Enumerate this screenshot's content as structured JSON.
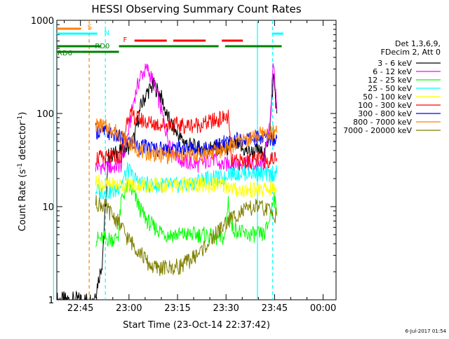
{
  "chart_data": {
    "type": "line",
    "title": "HESSI Observing Summary Count Rates",
    "xlabel": "Start Time (23-Oct-14 22:37:42)",
    "ylabel_main": "Count Rate (s",
    "ylabel_sup": "-1",
    "ylabel_tail": " detector",
    "ylabel_end": ")",
    "y_scale": "log",
    "ylim": [
      1,
      1000
    ],
    "x_unit": "minutes after 22:37:42",
    "xlim": [
      0,
      86.3
    ],
    "x_ticks": [
      {
        "label": "22:45",
        "x": 7.3
      },
      {
        "label": "23:00",
        "x": 22.3
      },
      {
        "label": "23:15",
        "x": 37.3
      },
      {
        "label": "23:30",
        "x": 52.3
      },
      {
        "label": "23:45",
        "x": 67.3
      },
      {
        "label": "00:00",
        "x": 82.3
      }
    ],
    "y_ticks": [
      {
        "label": "1",
        "y": 1
      },
      {
        "label": "10",
        "y": 10
      },
      {
        "label": "100",
        "y": 100
      },
      {
        "label": "1000",
        "y": 1000
      }
    ],
    "legend": {
      "placement": "right",
      "header": [
        "Det 1,3,6,9,",
        "FDecim 2, Att 0"
      ]
    },
    "series": [
      {
        "name": "3 - 6 keV",
        "color": "#000000",
        "x": [
          0,
          10,
          11,
          12,
          14,
          16,
          18,
          20,
          22,
          24,
          26,
          28,
          30,
          32,
          34,
          36,
          38,
          40,
          42,
          44,
          46,
          48,
          50,
          52,
          54,
          56,
          58,
          60,
          62,
          64,
          65,
          66,
          67,
          68
        ],
        "y": [
          1,
          1,
          1,
          1.2,
          2.5,
          35,
          37,
          40,
          43,
          55,
          120,
          170,
          200,
          160,
          95,
          70,
          55,
          48,
          44,
          42,
          42,
          43,
          42,
          40,
          46,
          45,
          40,
          38,
          40,
          36,
          45,
          80,
          260,
          100
        ]
      },
      {
        "name": "6 - 12 keV",
        "color": "#ff00ff",
        "x": [
          12,
          14,
          16,
          18,
          20,
          22,
          24,
          26,
          28,
          30,
          32,
          34,
          36,
          38,
          40,
          42,
          44,
          46,
          48,
          50,
          52,
          54,
          56,
          58,
          60,
          62,
          64,
          65,
          66,
          67,
          68
        ],
        "y": [
          27,
          27,
          26,
          27,
          28,
          60,
          150,
          260,
          300,
          210,
          120,
          60,
          40,
          32,
          30,
          29,
          28,
          30,
          34,
          28,
          28,
          30,
          29,
          30,
          28,
          27,
          29,
          50,
          100,
          350,
          110
        ]
      },
      {
        "name": "12 - 25 keV",
        "color": "#00ff00",
        "x": [
          12,
          14,
          16,
          18,
          19,
          20,
          22,
          24,
          26,
          28,
          30,
          32,
          34,
          36,
          38,
          40,
          42,
          44,
          46,
          48,
          50,
          52,
          53,
          54,
          56,
          58,
          60,
          62,
          64,
          65,
          66,
          67,
          68
        ],
        "y": [
          4.5,
          4.5,
          4.5,
          4.5,
          5,
          12,
          17,
          13,
          9,
          7,
          6,
          5.5,
          5,
          5,
          5,
          5,
          5,
          5,
          5,
          4.7,
          4.5,
          4.7,
          12,
          6,
          5.5,
          5,
          5,
          5,
          5,
          6,
          8,
          14,
          8
        ]
      },
      {
        "name": "25 - 50 keV",
        "color": "#00ffff",
        "x": [
          12,
          14,
          16,
          18,
          20,
          22,
          24,
          26,
          28,
          30,
          32,
          34,
          36,
          38,
          40,
          42,
          44,
          46,
          48,
          50,
          52,
          53,
          54,
          56,
          58,
          60,
          62,
          64,
          66,
          68
        ],
        "y": [
          15,
          14.5,
          14.5,
          14.5,
          18,
          25,
          20,
          18,
          17,
          17,
          17,
          17,
          17,
          17,
          17,
          18,
          19,
          20,
          20,
          20,
          20,
          24,
          23,
          23,
          23,
          23,
          23,
          22,
          22,
          23
        ]
      },
      {
        "name": "50 - 100 keV",
        "color": "#ffff00",
        "x": [
          12,
          14,
          16,
          18,
          20,
          22,
          24,
          26,
          28,
          30,
          32,
          34,
          36,
          38,
          40,
          42,
          44,
          46,
          48,
          50,
          52,
          53,
          54,
          56,
          58,
          60,
          62,
          64,
          66,
          68
        ],
        "y": [
          19,
          17.5,
          17,
          17,
          17,
          17,
          17,
          17,
          17,
          17,
          17,
          17,
          17,
          17,
          17,
          17,
          17,
          17,
          17,
          17,
          17,
          17,
          15.5,
          15,
          15,
          15,
          15,
          15,
          15.5,
          15.5
        ]
      },
      {
        "name": "100 - 300 keV",
        "color": "#ff0000",
        "x": [
          12,
          14,
          16,
          18,
          20,
          22,
          24,
          26,
          28,
          30,
          32,
          34,
          36,
          38,
          40,
          42,
          44,
          46,
          48,
          50,
          52,
          53,
          54,
          56,
          58,
          60,
          62,
          64,
          66,
          68
        ],
        "y": [
          34,
          33,
          33,
          34,
          35,
          100,
          92,
          85,
          80,
          78,
          76,
          76,
          75,
          74,
          74,
          75,
          76,
          78,
          82,
          86,
          90,
          92,
          30,
          30,
          31,
          31,
          32,
          32,
          32,
          33
        ]
      },
      {
        "name": "300 - 800 keV",
        "color": "#0000ff",
        "x": [
          12,
          14,
          16,
          18,
          20,
          22,
          24,
          26,
          28,
          30,
          32,
          34,
          36,
          38,
          40,
          42,
          44,
          46,
          48,
          50,
          52,
          54,
          56,
          58,
          60,
          62,
          64,
          66,
          68
        ],
        "y": [
          65,
          64,
          62,
          58,
          54,
          50,
          46,
          44,
          43,
          42,
          42,
          42,
          42,
          42,
          42,
          42,
          42,
          43,
          44,
          46,
          48,
          50,
          52,
          53,
          54,
          55,
          55,
          55,
          54
        ]
      },
      {
        "name": "800 - 7000 keV",
        "color": "#ff8000",
        "x": [
          12,
          14,
          16,
          18,
          20,
          22,
          24,
          26,
          28,
          30,
          32,
          34,
          36,
          38,
          40,
          42,
          44,
          46,
          48,
          50,
          52,
          54,
          56,
          58,
          60,
          62,
          64,
          66,
          68
        ],
        "y": [
          75,
          73,
          70,
          65,
          58,
          50,
          44,
          40,
          38,
          37,
          36,
          35,
          35,
          35,
          35,
          35,
          36,
          37,
          38,
          40,
          42,
          45,
          48,
          52,
          55,
          58,
          60,
          61,
          62
        ]
      },
      {
        "name": "7000 - 20000 keV",
        "color": "#808000",
        "x": [
          12,
          14,
          16,
          18,
          20,
          22,
          24,
          26,
          28,
          30,
          32,
          34,
          36,
          38,
          40,
          42,
          44,
          46,
          48,
          50,
          52,
          54,
          56,
          58,
          60,
          62,
          64,
          66,
          68
        ],
        "y": [
          11,
          10.5,
          9,
          7.5,
          6,
          4.5,
          3.8,
          3.2,
          2.5,
          2.2,
          2.2,
          2.2,
          2.2,
          2.3,
          2.5,
          2.8,
          3.2,
          3.8,
          4.5,
          5.5,
          6.5,
          7.5,
          8.5,
          9,
          9.5,
          10,
          9.5,
          9,
          8
        ]
      }
    ],
    "status_bars": [
      {
        "label": "S",
        "color": "#ff8000",
        "segments": [
          [
            -1.7,
            7.5
          ]
        ],
        "label_x": 9.5
      },
      {
        "label": "N",
        "color": "#00ffff",
        "segments": [
          [
            -1.7,
            12.5
          ],
          [
            66.5,
            70
          ]
        ],
        "label_x": 14.6
      },
      {
        "label": "F",
        "color": "#ff0000",
        "segments": [
          [
            24,
            34
          ],
          [
            36,
            46
          ],
          [
            51,
            57.5
          ]
        ],
        "label_x": 20.5
      },
      {
        "label": "RD0",
        "color": "#008000",
        "segments": [
          [
            -1.7,
            13.5
          ],
          [
            19.2,
            50
          ],
          [
            52,
            69.5
          ]
        ],
        "label_x": 11.8
      },
      {
        "label": "RD6",
        "color": "#008000",
        "segments": [
          [
            -1.7,
            7.5
          ],
          [
            7.5,
            19.2
          ]
        ],
        "label_x": 0.2
      }
    ],
    "vertical_lines": [
      {
        "x": -1,
        "color": "#00ffff",
        "style": "solid"
      },
      {
        "x": 10,
        "color": "#ff8000",
        "style": "dashed"
      },
      {
        "x": 15,
        "color": "#00ffff",
        "style": "dashed"
      },
      {
        "x": 62,
        "color": "#00ffff",
        "style": "solid"
      },
      {
        "x": 66.7,
        "color": "#00ffff",
        "style": "dashed"
      }
    ]
  },
  "timestamp": "6-Jul-2017 01:54"
}
